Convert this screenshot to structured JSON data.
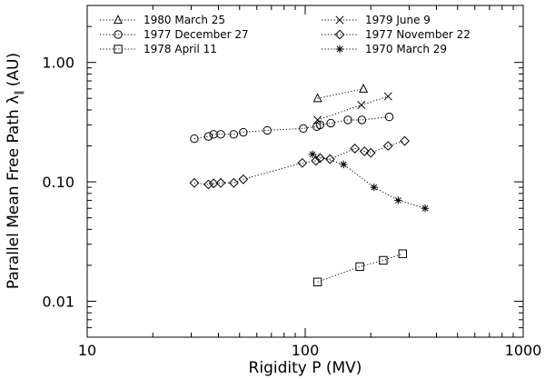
{
  "chart_data": {
    "type": "scatter",
    "xscale": "log",
    "yscale": "log",
    "xlabel": "Rigidity P (MV)",
    "ylabel": "Parallel Mean Free Path λ",
    "ylabel_subscript": "∥",
    "ylabel_unit": "(AU)",
    "xlim": [
      10,
      1000
    ],
    "ylim": [
      0.005,
      3.0
    ],
    "x_ticks": [
      {
        "value": 10,
        "label": "10"
      },
      {
        "value": 100,
        "label": "100"
      },
      {
        "value": 1000,
        "label": "1000"
      }
    ],
    "y_ticks": [
      {
        "value": 0.01,
        "label": "0.01"
      },
      {
        "value": 0.1,
        "label": "0.10"
      },
      {
        "value": 1.0,
        "label": "1.00"
      }
    ],
    "legend_position": "top",
    "series": [
      {
        "name": "1980 March 25",
        "marker": "triangle",
        "x": [
          114,
          185
        ],
        "y": [
          0.5,
          0.6
        ]
      },
      {
        "name": "1977 December 27",
        "marker": "circle",
        "x": [
          31,
          36,
          38,
          41,
          47,
          52,
          67,
          98,
          113,
          117,
          131,
          157,
          182,
          243
        ],
        "y": [
          0.23,
          0.24,
          0.25,
          0.25,
          0.25,
          0.26,
          0.27,
          0.28,
          0.29,
          0.3,
          0.31,
          0.33,
          0.33,
          0.35
        ]
      },
      {
        "name": "1978 April 11",
        "marker": "square",
        "x": [
          114,
          178,
          228,
          280
        ],
        "y": [
          0.0145,
          0.0195,
          0.022,
          0.025
        ]
      },
      {
        "name": "1979 June 9",
        "marker": "x",
        "x": [
          114,
          181,
          240
        ],
        "y": [
          0.33,
          0.44,
          0.52
        ]
      },
      {
        "name": "1977 November 22",
        "marker": "diamond",
        "x": [
          31,
          36,
          38,
          41,
          47,
          52,
          97,
          112,
          117,
          130,
          169,
          187,
          200,
          240,
          286
        ],
        "y": [
          0.098,
          0.095,
          0.097,
          0.098,
          0.098,
          0.105,
          0.144,
          0.15,
          0.158,
          0.155,
          0.19,
          0.18,
          0.175,
          0.2,
          0.22
        ]
      },
      {
        "name": "1970 March 29",
        "marker": "asterisk",
        "x": [
          108,
          150,
          207,
          267,
          355
        ],
        "y": [
          0.17,
          0.14,
          0.09,
          0.07,
          0.06
        ]
      }
    ]
  }
}
